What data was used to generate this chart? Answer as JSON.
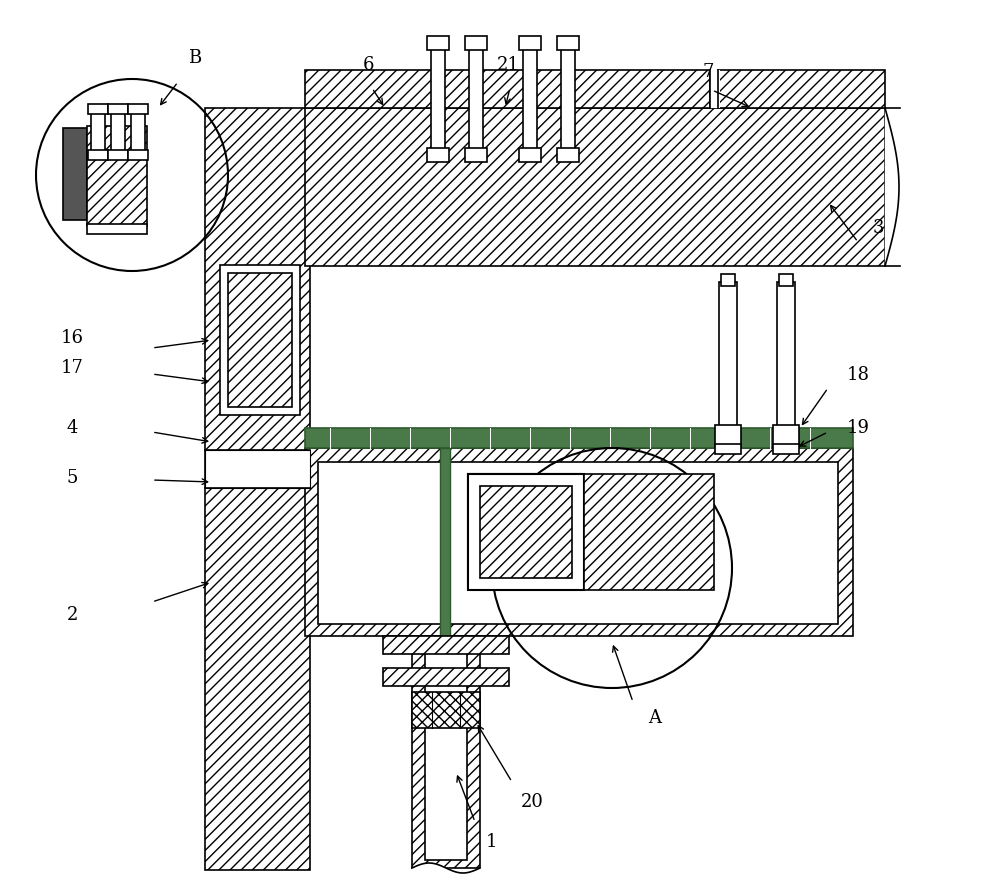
{
  "bg_color": "#ffffff",
  "line_color": "#000000",
  "dark_gray": "#555555",
  "green_fill": "#4a7a4a",
  "fig_width": 10.0,
  "fig_height": 8.81,
  "label_items": [
    [
      "B",
      195,
      58,
      178,
      82,
      158,
      108
    ],
    [
      "6",
      368,
      65,
      372,
      88,
      385,
      108
    ],
    [
      "21",
      508,
      65,
      510,
      88,
      505,
      108
    ],
    [
      "7",
      708,
      72,
      712,
      90,
      752,
      108
    ],
    [
      "3",
      878,
      228,
      858,
      242,
      828,
      202
    ],
    [
      "16",
      72,
      338,
      152,
      348,
      212,
      340
    ],
    [
      "17",
      72,
      368,
      152,
      374,
      212,
      382
    ],
    [
      "4",
      72,
      428,
      152,
      432,
      212,
      442
    ],
    [
      "5",
      72,
      478,
      152,
      480,
      212,
      482
    ],
    [
      "2",
      72,
      615,
      152,
      602,
      212,
      582
    ],
    [
      "18",
      858,
      375,
      828,
      388,
      800,
      428
    ],
    [
      "19",
      858,
      428,
      828,
      432,
      796,
      448
    ],
    [
      "20",
      532,
      802,
      512,
      782,
      476,
      722
    ],
    [
      "1",
      492,
      842,
      475,
      822,
      456,
      772
    ],
    [
      "A",
      655,
      718,
      633,
      702,
      612,
      642
    ]
  ]
}
